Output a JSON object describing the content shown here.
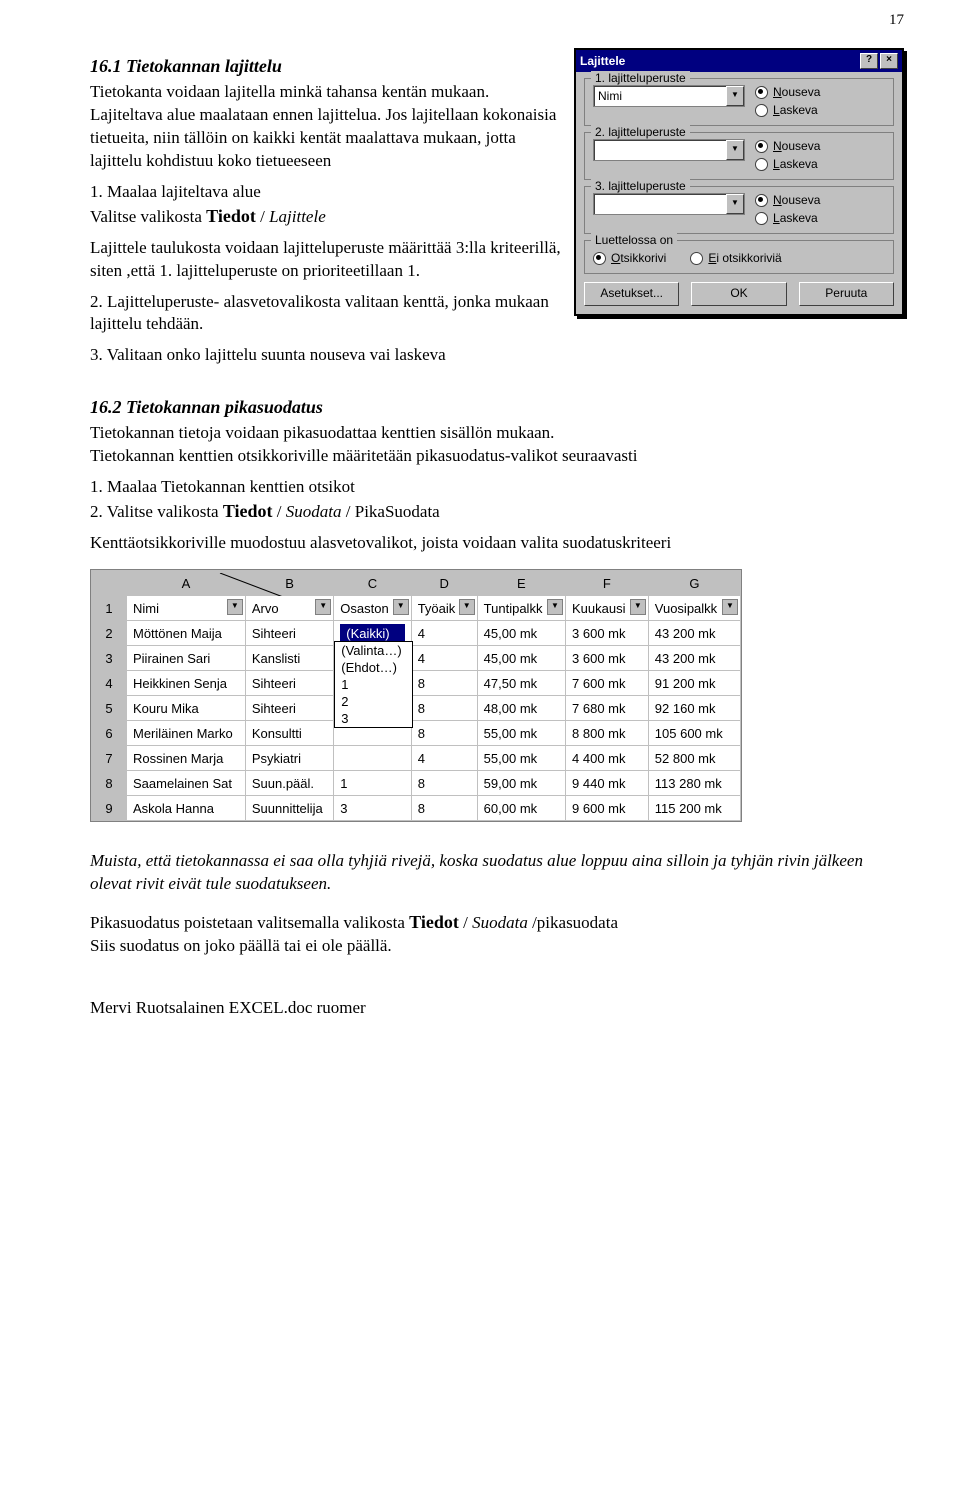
{
  "page_number": "17",
  "sec1": {
    "title": "16.1 Tietokannan lajittelu",
    "p1": "Tietokanta voidaan lajitella minkä tahansa kentän mukaan. Lajiteltava alue maalataan ennen lajittelua. Jos lajitellaan kokonaisia tietueita, niin tällöin on kaikki kentät maalattava mukaan, jotta lajittelu kohdistuu koko tietueeseen",
    "p2a": "1. Maalaa lajiteltava alue",
    "p2b_pre": "Valitse valikosta ",
    "p2b_bold": "Tiedot",
    "p2b_sep": " / ",
    "p2b_italic": "Lajittele",
    "p3": "Lajittele taulukosta voidaan lajitteluperuste määrittää 3:lla kriteerillä, siten ,että 1. lajitteluperuste on prioriteetillaan 1.",
    "p4": "2. Lajitteluperuste- alasvetovalikosta  valitaan kenttä, jonka mukaan lajittelu tehdään.",
    "p5": "3. Valitaan onko lajittelu suunta nouseva vai laskeva"
  },
  "dialog": {
    "title": "Lajittele",
    "help": "?",
    "close": "×",
    "g1": "1. lajitteluperuste",
    "g2": "2. lajitteluperuste",
    "g3": "3. lajitteluperuste",
    "combo1_value": "Nimi",
    "combo2_value": "",
    "combo3_value": "",
    "arrow": "▼",
    "r_up_u": "N",
    "r_up_rest": "ouseva",
    "r_dn_u": "L",
    "r_dn_rest": "askeva",
    "luettelo_label": "Luettelossa on",
    "luettelo_opt1_u": "O",
    "luettelo_opt1_rest": "tsikkorivi",
    "luettelo_opt2_u": "E",
    "luettelo_opt2_rest": "i otsikkoriviä",
    "btn_settings": "Asetukset...",
    "btn_ok": "OK",
    "btn_cancel": "Peruuta"
  },
  "sec2": {
    "title": "16.2 Tietokannan pikasuodatus",
    "p1": "Tietokannan tietoja voidaan pikasuodattaa kenttien sisällön mukaan.",
    "p2": "Tietokannan kenttien otsikkoriville määritetään pikasuodatus-valikot seuraavasti",
    "p3": "1. Maalaa Tietokannan kenttien otsikot",
    "p4_pre": "2. Valitse valikosta ",
    "p4_bold": "Tiedot",
    "p4_sep1": " / ",
    "p4_it1": "Suodata",
    "p4_sep2": " / ",
    "p4_rest": "PikaSuodata",
    "p5": "Kenttäotsikkoriville muodostuu alasvetovalikot, joista voidaan valita suodatuskriteeri"
  },
  "sheet": {
    "col_letters": [
      "A",
      "B",
      "C",
      "D",
      "E",
      "F",
      "G"
    ],
    "headers": [
      "Nimi",
      "Arvo",
      "Osaston",
      "Työaik",
      "Tuntipalkk",
      "Kuukausi",
      "Vuosipalkk"
    ],
    "dropdown": {
      "selected": "(Kaikki)",
      "opts": [
        "(Valinta…)",
        "(Ehdot…)",
        "1",
        "2",
        "3"
      ]
    },
    "rows": [
      [
        "Möttönen Maija",
        "Sihteeri",
        "",
        "4",
        "45,00 mk",
        "3 600 mk",
        "43 200 mk"
      ],
      [
        "Piirainen Sari",
        "Kanslisti",
        "",
        "4",
        "45,00 mk",
        "3 600 mk",
        "43 200 mk"
      ],
      [
        "Heikkinen Senja",
        "Sihteeri",
        "",
        "8",
        "47,50 mk",
        "7 600 mk",
        "91 200 mk"
      ],
      [
        "Kouru Mika",
        "Sihteeri",
        "",
        "8",
        "48,00 mk",
        "7 680 mk",
        "92 160 mk"
      ],
      [
        "Meriläinen Marko",
        "Konsultti",
        "",
        "8",
        "55,00 mk",
        "8 800 mk",
        "105 600 mk"
      ],
      [
        "Rossinen Marja",
        "Psykiatri",
        "",
        "4",
        "55,00 mk",
        "4 400 mk",
        "52 800 mk"
      ],
      [
        "Saamelainen Sat",
        "Suun.pääl.",
        "1",
        "8",
        "59,00 mk",
        "9 440 mk",
        "113 280 mk"
      ],
      [
        "Askola Hanna",
        "Suunnittelija",
        "3",
        "8",
        "60,00 mk",
        "9 600 mk",
        "115 200 mk"
      ]
    ],
    "arrow": "▼"
  },
  "tail": {
    "p1": "Muista, että tietokannassa ei saa olla tyhjiä rivejä, koska  suodatus alue loppuu aina silloin ja tyhjän rivin jälkeen olevat rivit eivät tule suodatukseen.",
    "p2_pre": "Pikasuodatus poistetaan valitsemalla valikosta ",
    "p2_bold": "Tiedot",
    "p2_sep1": " / ",
    "p2_it": "Suodata ",
    "p2_rest": "/pikasuodata",
    "p3": "Siis suodatus on joko päällä tai ei ole päällä."
  },
  "footer": "Mervi Ruotsalainen EXCEL.doc   ruomer"
}
